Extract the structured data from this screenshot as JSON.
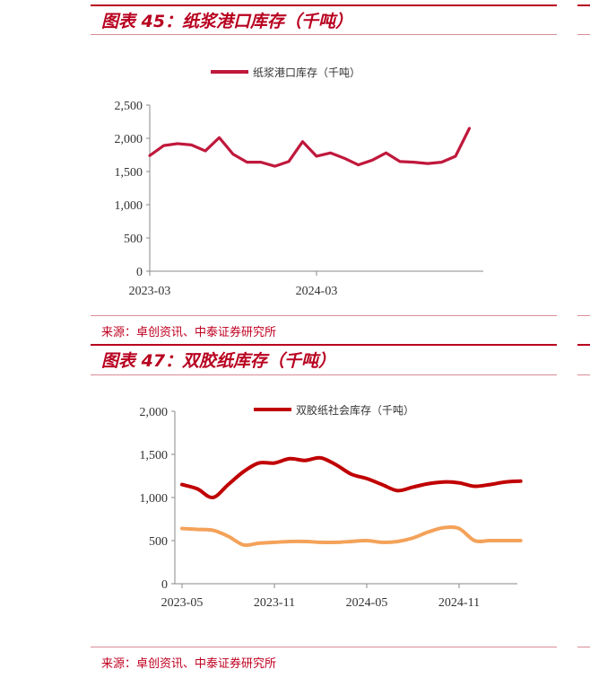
{
  "charts": [
    {
      "figure_title": "图表 45：纸浆港口库存（千吨）",
      "source": "来源：卓创资讯、中泰证券研究所",
      "colors": {
        "series": "#c0183c"
      }
    },
    {
      "figure_title": "图表 47：双胶纸库存（千吨）",
      "source": "来源：卓创资讯、中泰证券研究所",
      "colors": {
        "series1": "#c00000",
        "series2": "#f4a25a"
      }
    }
  ],
  "chart_data": [
    {
      "type": "line",
      "title": "",
      "legend_position": "top-center",
      "grid": false,
      "ylim": [
        0,
        2500
      ],
      "yticks": [
        "0",
        "500",
        "1,000",
        "1,500",
        "2,000",
        "2,500"
      ],
      "xticks": [
        "2023-03",
        "2024-03"
      ],
      "x": [
        "2023-03",
        "2023-04",
        "2023-05",
        "2023-06",
        "2023-07",
        "2023-08",
        "2023-09",
        "2023-10",
        "2023-11",
        "2023-12",
        "2024-01",
        "2024-02",
        "2024-03",
        "2024-04",
        "2024-05",
        "2024-06",
        "2024-07",
        "2024-08",
        "2024-09",
        "2024-10",
        "2024-11",
        "2024-12",
        "2025-01",
        "2025-02",
        "2025-03"
      ],
      "series": [
        {
          "name": "纸浆港口库存（千吨）",
          "values": [
            1740,
            1890,
            1920,
            1900,
            1810,
            2010,
            1760,
            1640,
            1640,
            1580,
            1650,
            1950,
            1730,
            1780,
            1700,
            1600,
            1670,
            1780,
            1650,
            1640,
            1620,
            1640,
            1730,
            2150,
            null
          ]
        }
      ]
    },
    {
      "type": "line",
      "title": "",
      "legend_position": "top-center",
      "grid": false,
      "ylim": [
        0,
        2000
      ],
      "yticks": [
        "0",
        "500",
        "1,000",
        "1,500",
        "2,000"
      ],
      "xticks": [
        "2023-05",
        "2023-11",
        "2024-05",
        "2024-11"
      ],
      "x_months": 23,
      "series": [
        {
          "name": "双胶纸社会库存（千吨）",
          "values": [
            1150,
            1100,
            1000,
            1150,
            1300,
            1400,
            1400,
            1450,
            1430,
            1460,
            1380,
            1270,
            1220,
            1150,
            1080,
            1120,
            1160,
            1180,
            1170,
            1130,
            1150,
            1180,
            1190
          ]
        },
        {
          "name": "",
          "values": [
            640,
            630,
            620,
            550,
            450,
            470,
            480,
            490,
            490,
            480,
            480,
            490,
            500,
            480,
            490,
            530,
            600,
            650,
            640,
            500,
            500,
            500,
            500
          ]
        }
      ]
    }
  ]
}
